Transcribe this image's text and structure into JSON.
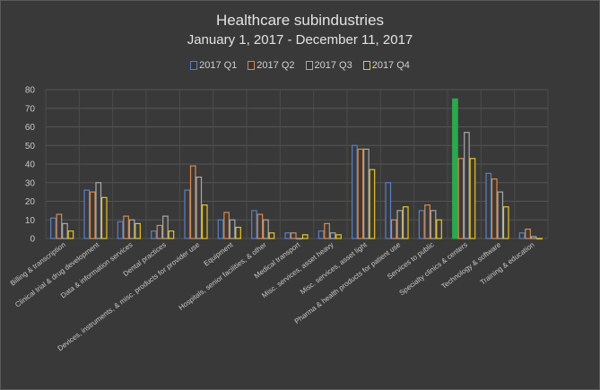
{
  "chart_data": {
    "type": "bar",
    "title": "Healthcare subindustries",
    "subtitle": "January 1, 2017 - December 11, 2017",
    "categories": [
      "Billing & transcription",
      "Clinical trial & drug development",
      "Data & information services",
      "Dental practices",
      "Devices, instruments, & misc. products for provider use",
      "Equipment",
      "Hospitals, senior facilities, & other",
      "Medical transport",
      "Misc. services, asset heavy",
      "Misc. services, asset light",
      "Pharma & health products for patient use",
      "Services to public",
      "Specialty clinics & centers",
      "Technology & software",
      "Training & education"
    ],
    "series": [
      {
        "name": "2017 Q1",
        "color": "#5b7fc4",
        "values": [
          11,
          26,
          9,
          4,
          26,
          10,
          15,
          3,
          4,
          50,
          30,
          15,
          75,
          35,
          3
        ]
      },
      {
        "name": "2017 Q2",
        "color": "#d98a4e",
        "values": [
          13,
          25,
          12,
          7,
          39,
          14,
          13,
          3,
          8,
          48,
          10,
          18,
          43,
          32,
          5
        ]
      },
      {
        "name": "2017 Q3",
        "color": "#a8a8a8",
        "values": [
          8,
          30,
          10,
          12,
          33,
          10,
          10,
          0,
          3,
          48,
          15,
          15,
          57,
          25,
          1
        ]
      },
      {
        "name": "2017 Q4",
        "color": "#e6c229",
        "values": [
          4,
          22,
          8,
          4,
          18,
          6,
          3,
          2,
          2,
          37,
          17,
          10,
          43,
          17,
          0
        ]
      }
    ],
    "highlight_color": "#2aa84a",
    "ylim": [
      0,
      80
    ],
    "yticks": [
      0,
      10,
      20,
      30,
      40,
      50,
      60,
      70,
      80
    ],
    "grid": true,
    "legend_position": "top"
  }
}
